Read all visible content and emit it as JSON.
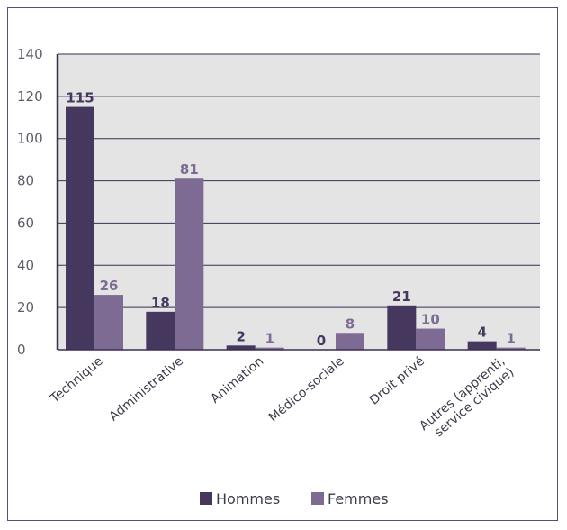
{
  "chart_data": {
    "type": "bar",
    "categories": [
      "Technique",
      "Administrative",
      "Animation",
      "Médico-sociale",
      "Droit privé",
      "Autres (apprenti, service civique)"
    ],
    "category_lines": [
      [
        "Technique"
      ],
      [
        "Administrative"
      ],
      [
        "Animation"
      ],
      [
        "Médico-sociale"
      ],
      [
        "Droit privé"
      ],
      [
        "Autres (apprenti,",
        "service civique)"
      ]
    ],
    "series": [
      {
        "name": "Hommes",
        "values": [
          115,
          18,
          2,
          0,
          21,
          4
        ],
        "color": "#46375f"
      },
      {
        "name": "Femmes",
        "values": [
          26,
          81,
          1,
          8,
          10,
          1
        ],
        "color": "#7d6b93"
      }
    ],
    "ylim": [
      0,
      140
    ],
    "yticks": [
      0,
      20,
      40,
      60,
      80,
      100,
      120,
      140
    ],
    "grid": true,
    "legend_position": "bottom",
    "colors": {
      "background": "#e4e4e5",
      "frame": "#5b4f78",
      "axis": "#3b2d55",
      "gridline": "#3b2d55"
    }
  }
}
